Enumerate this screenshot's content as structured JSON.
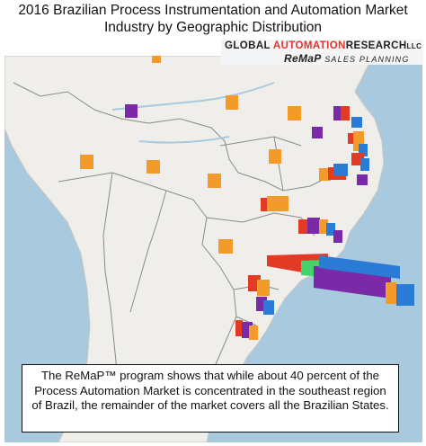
{
  "title": {
    "line1": "2016 Brazilian Process Instrumentation and Automation Market",
    "line2": "Industry by Geographic Distribution"
  },
  "logo": {
    "part1": "GLOBAL ",
    "part2": "AUTOMATION",
    "part3": "RESEARCH",
    "part4": "LLC",
    "line2_brand": "ReMaP",
    "line2_rest": " SALES PLANNING"
  },
  "caption": {
    "line1": "The ReMaP™ program shows that while about 40 percent of the",
    "line2": "Process Automation Market is concentrated in the southeast region",
    "line3": "of Brazil, the remainder of the market covers all the Brazilian States."
  },
  "colors": {
    "ocean": "#a9c9de",
    "land": "#efeeea",
    "border": "#8a8a8a",
    "orange": "#f39a2a",
    "purple": "#7a2aa6",
    "blue": "#2a7bd6",
    "red": "#e23b25",
    "green": "#43d36b"
  }
}
